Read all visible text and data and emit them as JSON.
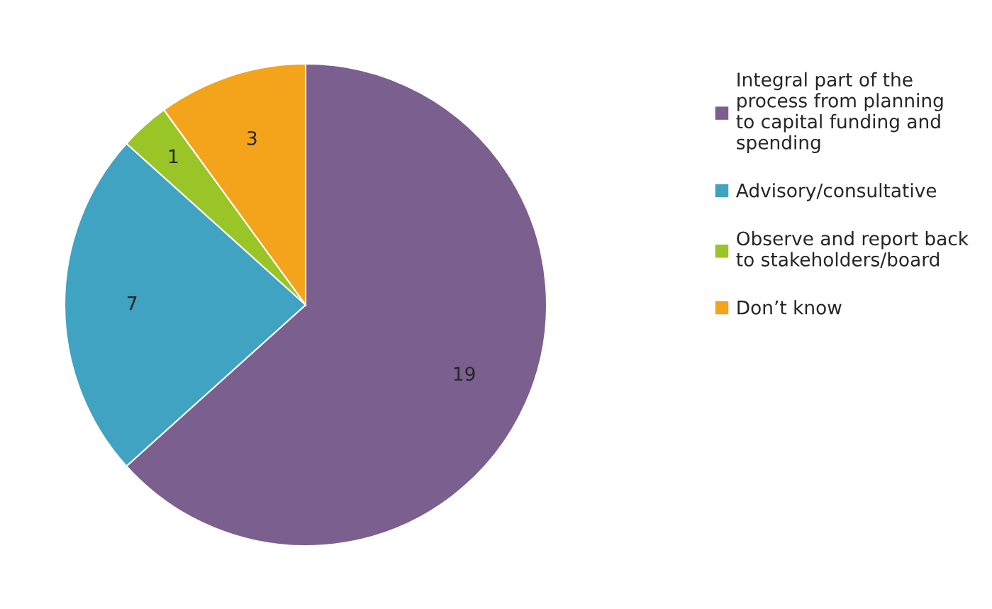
{
  "chart_data": {
    "type": "pie",
    "categories": [
      "Integral part of the process from planning to capital funding and spending",
      "Advisory/consultative",
      "Observe and report back to stakeholders/board",
      "Don’t know"
    ],
    "values": [
      19,
      7,
      1,
      3
    ],
    "colors": [
      "#7b5f8e",
      "#3fa3c1",
      "#9ac526",
      "#f4a41b"
    ],
    "data_labels": true,
    "legend": "right"
  }
}
